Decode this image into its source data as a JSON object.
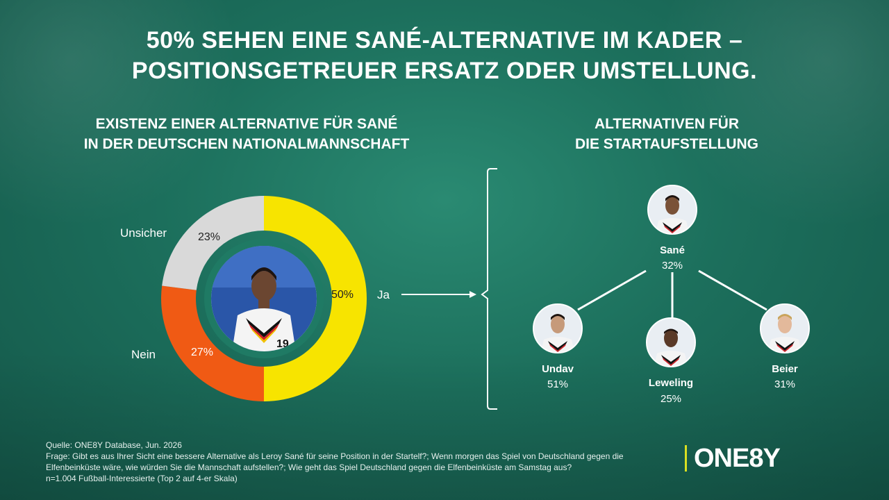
{
  "title": {
    "line1": "50% SEHEN EINE SANÉ-ALTERNATIVE IM KADER –",
    "line2": "POSITIONSGETREUER ERSATZ ODER UMSTELLUNG."
  },
  "left_panel": {
    "subtitle_line1": "EXISTENZ EINER ALTERNATIVE FÜR SANÉ",
    "subtitle_line2": "IN DER DEUTSCHEN NATIONALMANNSCHAFT"
  },
  "right_panel": {
    "subtitle_line1": "ALTERNATIVEN FÜR",
    "subtitle_line2": "DIE STARTAUFSTELLUNG"
  },
  "chart_data": {
    "type": "pie",
    "style": "donut",
    "slices": [
      {
        "label": "Ja",
        "value": 50,
        "display": "50%",
        "color": "#f7e400",
        "text_color": "#222222"
      },
      {
        "label": "Nein",
        "value": 27,
        "display": "27%",
        "color": "#f05a14",
        "text_color": "#ffffff"
      },
      {
        "label": "Unsicher",
        "value": 23,
        "display": "23%",
        "color": "#d9d9d9",
        "text_color": "#222222"
      }
    ],
    "center_image": "player-photo"
  },
  "players": {
    "top": {
      "name": "Sané",
      "pct": "32%"
    },
    "left": {
      "name": "Undav",
      "pct": "51%"
    },
    "middle": {
      "name": "Leweling",
      "pct": "25%"
    },
    "right": {
      "name": "Beier",
      "pct": "31%"
    }
  },
  "footnote": {
    "source": "Quelle: ONE8Y Database, Jun. 2026",
    "question_line1": "Frage: Gibt es aus Ihrer Sicht eine bessere Alternative als Leroy Sané für seine Position in der Startelf?; Wenn morgen das Spiel von Deutschland gegen die",
    "question_line2": "Elfenbeinküste wäre, wie würden Sie die Mannschaft aufstellen?; Wie geht das Spiel Deutschland gegen die Elfenbeinküste am Samstag aus?",
    "sample": "n=1.004 Fußball-Interessierte (Top 2 auf 4-er Skala)"
  },
  "logo": {
    "text": "ONE8Y"
  },
  "colors": {
    "accent": "#d9e021",
    "background": "#1c6f5c"
  }
}
